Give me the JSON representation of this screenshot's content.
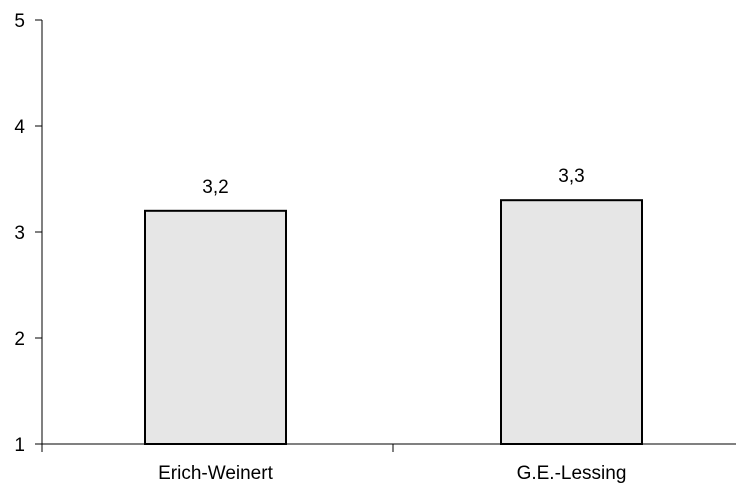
{
  "chart_data": {
    "type": "bar",
    "title": "",
    "xlabel": "",
    "ylabel": "",
    "categories": [
      "Erich-Weinert",
      "G.E.-Lessing"
    ],
    "values": [
      3.2,
      3.3
    ],
    "value_labels": [
      "3,2",
      "3,3"
    ],
    "ylim": [
      1,
      5
    ],
    "yticks": [
      "1",
      "2",
      "3",
      "4",
      "5"
    ],
    "grid": false,
    "legend": "none",
    "bar_fill": "#e6e6e6",
    "bar_stroke": "#000000"
  }
}
